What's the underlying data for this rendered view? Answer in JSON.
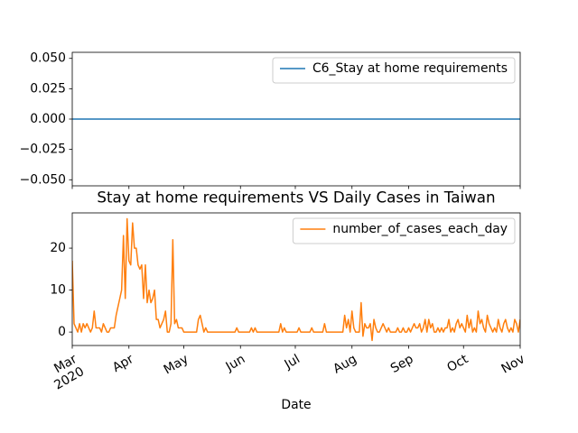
{
  "chart_data": [
    {
      "type": "line",
      "series": [
        {
          "name": "C6_Stay at home requirements",
          "color": "#1f77b4",
          "values": [
            0,
            0,
            0,
            0,
            0,
            0,
            0,
            0,
            0,
            0,
            0,
            0,
            0,
            0,
            0,
            0,
            0,
            0,
            0,
            0,
            0,
            0,
            0,
            0,
            0,
            0,
            0,
            0,
            0,
            0,
            0,
            0,
            0,
            0,
            0,
            0,
            0,
            0,
            0,
            0,
            0,
            0,
            0,
            0,
            0,
            0,
            0,
            0,
            0,
            0,
            0,
            0,
            0,
            0,
            0,
            0,
            0,
            0,
            0,
            0,
            0,
            0,
            0,
            0,
            0,
            0,
            0,
            0,
            0,
            0,
            0,
            0,
            0,
            0,
            0,
            0,
            0,
            0,
            0,
            0,
            0,
            0,
            0,
            0,
            0,
            0,
            0,
            0,
            0,
            0,
            0,
            0,
            0,
            0,
            0,
            0,
            0,
            0,
            0,
            0,
            0,
            0,
            0,
            0,
            0,
            0,
            0,
            0,
            0,
            0,
            0,
            0,
            0,
            0,
            0,
            0,
            0,
            0,
            0,
            0,
            0,
            0,
            0,
            0,
            0,
            0,
            0,
            0,
            0,
            0,
            0,
            0,
            0,
            0,
            0,
            0,
            0,
            0,
            0,
            0,
            0,
            0,
            0,
            0,
            0,
            0,
            0,
            0,
            0,
            0,
            0,
            0,
            0,
            0,
            0,
            0,
            0,
            0,
            0,
            0,
            0,
            0,
            0,
            0,
            0,
            0,
            0,
            0,
            0,
            0,
            0,
            0,
            0,
            0,
            0,
            0,
            0,
            0,
            0,
            0,
            0,
            0,
            0,
            0,
            0,
            0,
            0,
            0,
            0,
            0,
            0,
            0,
            0,
            0,
            0,
            0,
            0,
            0,
            0,
            0,
            0,
            0,
            0,
            0,
            0,
            0,
            0,
            0,
            0,
            0,
            0,
            0,
            0,
            0,
            0,
            0,
            0,
            0,
            0,
            0,
            0,
            0,
            0,
            0,
            0,
            0,
            0,
            0,
            0,
            0,
            0,
            0,
            0,
            0,
            0,
            0,
            0,
            0,
            0,
            0,
            0,
            0,
            0,
            0,
            0,
            0
          ]
        }
      ],
      "xlim": [
        0,
        245
      ],
      "xticks": [
        0,
        31,
        61,
        92,
        122,
        153,
        184,
        214,
        245
      ],
      "ylim": [
        -0.055,
        0.055
      ],
      "yticks": [
        {
          "value": 0.05,
          "label": "0.050"
        },
        {
          "value": 0.025,
          "label": "0.025"
        },
        {
          "value": 0,
          "label": "0.000"
        },
        {
          "value": -0.025,
          "label": "−0.025"
        },
        {
          "value": -0.05,
          "label": "−0.050"
        }
      ],
      "legend": "upper right"
    },
    {
      "type": "line",
      "title": "Stay at home requirements VS Daily Cases in Taiwan",
      "x_label": "Date",
      "series": [
        {
          "name": "number_of_cases_each_day",
          "color": "#ff7f0e",
          "values": [
            17,
            2,
            1,
            0,
            2,
            0,
            2,
            1,
            2,
            1,
            0,
            1,
            5,
            1,
            1,
            1,
            0,
            2,
            1,
            0,
            0,
            1,
            1,
            1,
            4,
            6,
            8,
            10,
            23,
            8,
            27,
            17,
            16,
            26,
            20,
            20,
            16,
            15,
            16,
            8,
            16,
            7,
            10,
            7,
            8,
            10,
            3,
            3,
            1,
            2,
            3,
            5,
            0,
            0,
            2,
            22,
            2,
            3,
            1,
            1,
            1,
            0,
            0,
            0,
            0,
            0,
            0,
            0,
            0,
            3,
            4,
            2,
            0,
            1,
            0,
            0,
            0,
            0,
            0,
            0,
            0,
            0,
            0,
            0,
            0,
            0,
            0,
            0,
            0,
            0,
            1,
            0,
            0,
            0,
            0,
            0,
            0,
            0,
            1,
            0,
            1,
            0,
            0,
            0,
            0,
            0,
            0,
            0,
            0,
            0,
            0,
            0,
            0,
            0,
            2,
            0,
            1,
            0,
            0,
            0,
            0,
            0,
            0,
            0,
            1,
            0,
            0,
            0,
            0,
            0,
            0,
            1,
            0,
            0,
            0,
            0,
            0,
            0,
            2,
            0,
            0,
            0,
            0,
            0,
            0,
            0,
            0,
            0,
            0,
            4,
            1,
            3,
            0,
            5,
            1,
            0,
            0,
            0,
            7,
            -1,
            2,
            1,
            1,
            2,
            -2,
            3,
            1,
            0,
            0,
            1,
            2,
            1,
            0,
            1,
            0,
            0,
            0,
            0,
            1,
            0,
            0,
            1,
            0,
            0,
            1,
            0,
            1,
            2,
            1,
            1,
            2,
            0,
            1,
            3,
            0,
            3,
            1,
            2,
            0,
            0,
            1,
            0,
            1,
            0,
            1,
            1,
            3,
            0,
            1,
            0,
            2,
            3,
            1,
            2,
            1,
            0,
            4,
            1,
            3,
            0,
            1,
            0,
            5,
            2,
            3,
            1,
            0,
            4,
            2,
            1,
            0,
            1,
            0,
            3,
            1,
            0,
            2,
            3,
            1,
            0,
            1,
            0,
            3,
            2,
            0,
            3
          ]
        }
      ],
      "xlim": [
        0,
        245
      ],
      "xticks": [
        {
          "value": 0,
          "label": "Mar\n2020"
        },
        {
          "value": 31,
          "label": "Apr"
        },
        {
          "value": 61,
          "label": "May"
        },
        {
          "value": 92,
          "label": "Jun"
        },
        {
          "value": 122,
          "label": "Jul"
        },
        {
          "value": 153,
          "label": "Aug"
        },
        {
          "value": 184,
          "label": "Sep"
        },
        {
          "value": 214,
          "label": "Oct"
        },
        {
          "value": 245,
          "label": "Nov"
        }
      ],
      "ylim": [
        -3.2,
        28.4
      ],
      "yticks": [
        0,
        10,
        20
      ],
      "legend": "upper right"
    }
  ]
}
